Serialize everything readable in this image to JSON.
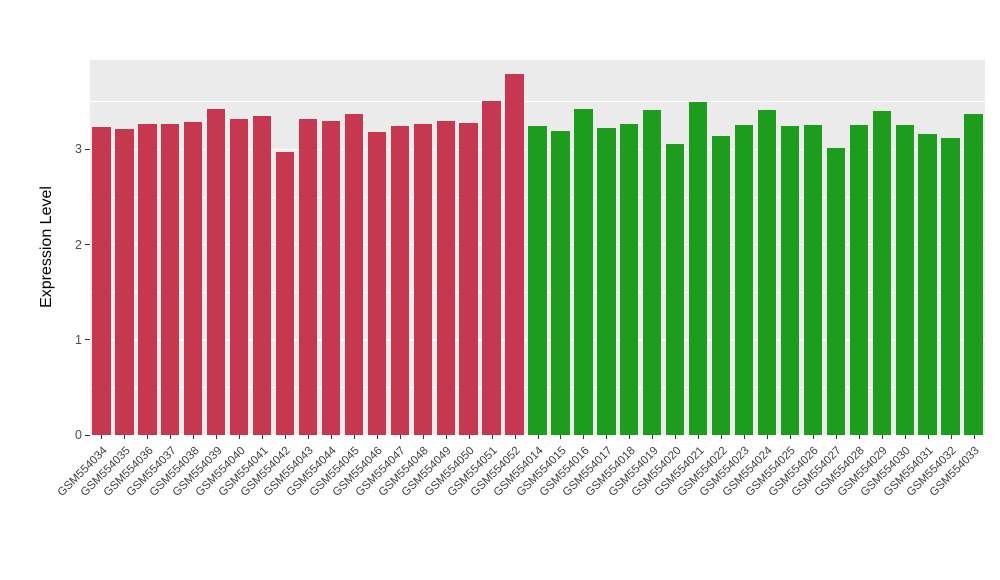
{
  "chart_data": {
    "type": "bar",
    "title": "",
    "xlabel": "",
    "ylabel": "Expression Level",
    "ylim": [
      0,
      3.94
    ],
    "yticks": [
      0,
      1,
      2,
      3
    ],
    "yminor": [
      0.5,
      1.5,
      2.5,
      3.5
    ],
    "grid": "white major and minor horizontal gridlines on grey panel",
    "legend_position": "none",
    "panel_background": "#EBEBEB",
    "gridline_color": "#FFFFFF",
    "bar_width_fraction": 0.8,
    "series": [
      {
        "name": "group-red",
        "color": "#C5384F",
        "categories": [
          "GSM554034",
          "GSM554035",
          "GSM554036",
          "GSM554037",
          "GSM554038",
          "GSM554039",
          "GSM554040",
          "GSM554041",
          "GSM554042",
          "GSM554043",
          "GSM554044",
          "GSM554045",
          "GSM554046",
          "GSM554047",
          "GSM554048",
          "GSM554049",
          "GSM554050",
          "GSM554051",
          "GSM554052"
        ],
        "values": [
          3.24,
          3.21,
          3.27,
          3.27,
          3.29,
          3.43,
          3.32,
          3.35,
          2.97,
          3.32,
          3.3,
          3.37,
          3.18,
          3.25,
          3.27,
          3.3,
          3.28,
          3.51,
          3.79
        ]
      },
      {
        "name": "group-green",
        "color": "#1E9C1E",
        "categories": [
          "GSM554014",
          "GSM554015",
          "GSM554016",
          "GSM554017",
          "GSM554018",
          "GSM554019",
          "GSM554020",
          "GSM554021",
          "GSM554022",
          "GSM554023",
          "GSM554024",
          "GSM554025",
          "GSM554026",
          "GSM554027",
          "GSM554028",
          "GSM554029",
          "GSM554030",
          "GSM554031",
          "GSM554032",
          "GSM554033"
        ],
        "values": [
          3.25,
          3.19,
          3.43,
          3.23,
          3.27,
          3.42,
          3.06,
          3.5,
          3.14,
          3.26,
          3.41,
          3.25,
          3.26,
          3.02,
          3.26,
          3.4,
          3.26,
          3.16,
          3.12,
          3.37
        ]
      }
    ]
  }
}
